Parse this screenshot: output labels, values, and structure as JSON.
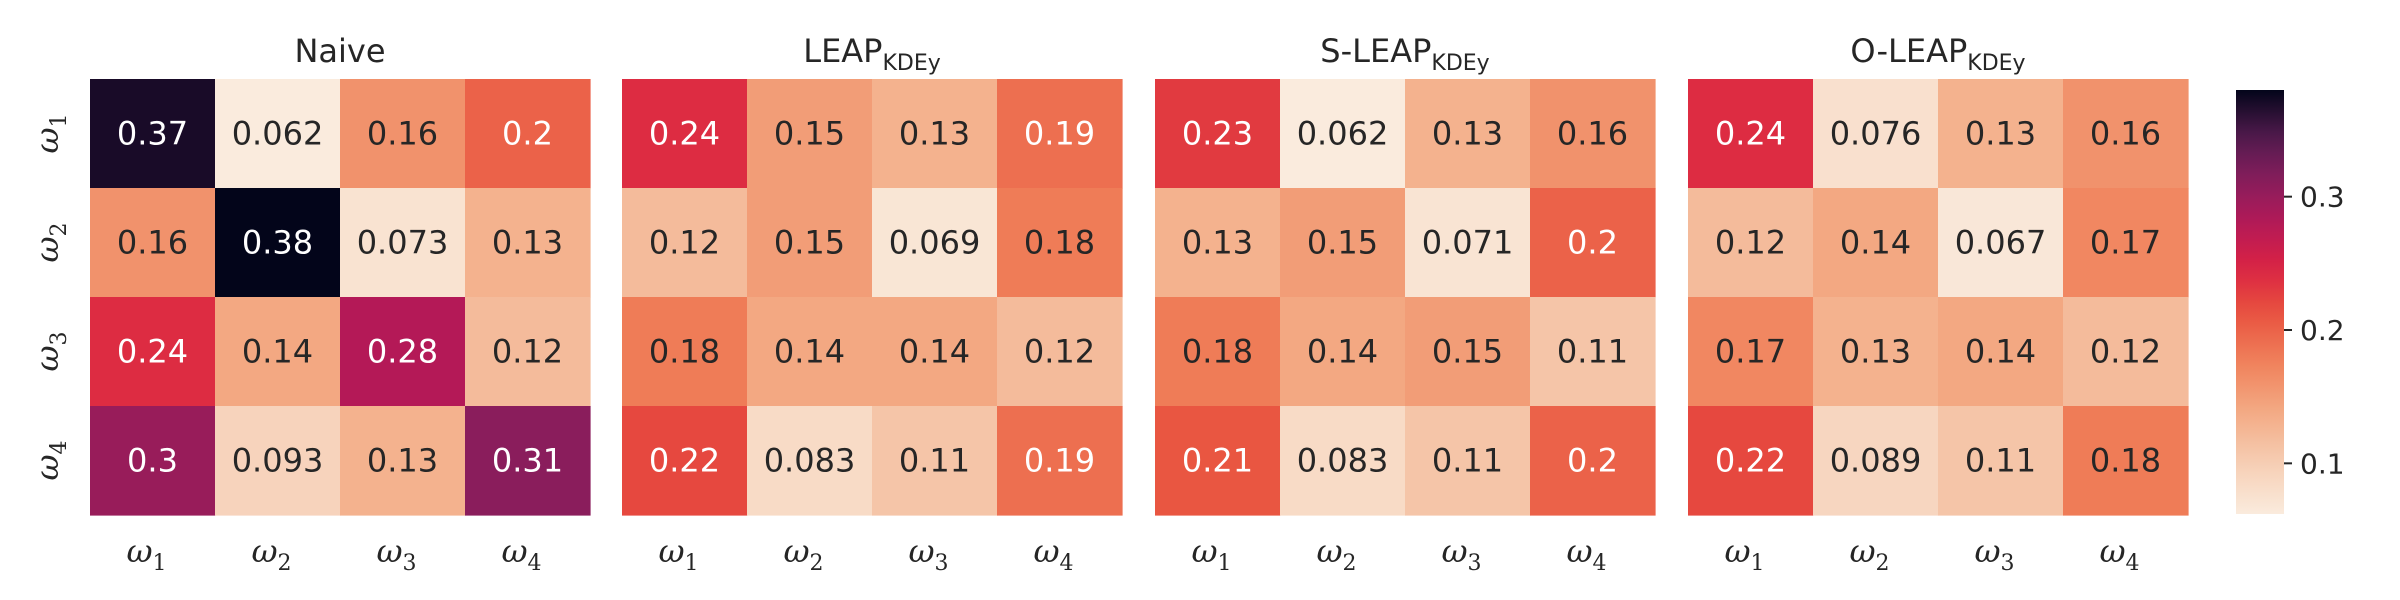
{
  "chart_data": {
    "type": "heatmap",
    "colormap": "rocket_r",
    "color_range": [
      0.062,
      0.38
    ],
    "colorbar": {
      "ticks": [
        0.1,
        0.2,
        0.3
      ],
      "labels": [
        "0.1",
        "0.2",
        "0.3"
      ],
      "placement": "right"
    },
    "row_labels": [
      {
        "base": "ω",
        "sub": "1"
      },
      {
        "base": "ω",
        "sub": "2"
      },
      {
        "base": "ω",
        "sub": "3"
      },
      {
        "base": "ω",
        "sub": "4"
      }
    ],
    "col_labels": [
      {
        "base": "ω",
        "sub": "1"
      },
      {
        "base": "ω",
        "sub": "2"
      },
      {
        "base": "ω",
        "sub": "3"
      },
      {
        "base": "ω",
        "sub": "4"
      }
    ],
    "panels": [
      {
        "title": "Naive",
        "title_sub": "",
        "values": [
          [
            0.37,
            0.062,
            0.16,
            0.2
          ],
          [
            0.16,
            0.38,
            0.073,
            0.13
          ],
          [
            0.24,
            0.14,
            0.28,
            0.12
          ],
          [
            0.3,
            0.093,
            0.13,
            0.31
          ]
        ],
        "labels": [
          [
            "0.37",
            "0.062",
            "0.16",
            "0.2"
          ],
          [
            "0.16",
            "0.38",
            "0.073",
            "0.13"
          ],
          [
            "0.24",
            "0.14",
            "0.28",
            "0.12"
          ],
          [
            "0.3",
            "0.093",
            "0.13",
            "0.31"
          ]
        ]
      },
      {
        "title": "LEAP",
        "title_sub": "KDEy",
        "values": [
          [
            0.24,
            0.15,
            0.13,
            0.19
          ],
          [
            0.12,
            0.15,
            0.069,
            0.18
          ],
          [
            0.18,
            0.14,
            0.14,
            0.12
          ],
          [
            0.22,
            0.083,
            0.11,
            0.19
          ]
        ],
        "labels": [
          [
            "0.24",
            "0.15",
            "0.13",
            "0.19"
          ],
          [
            "0.12",
            "0.15",
            "0.069",
            "0.18"
          ],
          [
            "0.18",
            "0.14",
            "0.14",
            "0.12"
          ],
          [
            "0.22",
            "0.083",
            "0.11",
            "0.19"
          ]
        ]
      },
      {
        "title": "S-LEAP",
        "title_sub": "KDEy",
        "values": [
          [
            0.23,
            0.062,
            0.13,
            0.16
          ],
          [
            0.13,
            0.15,
            0.071,
            0.2
          ],
          [
            0.18,
            0.14,
            0.15,
            0.11
          ],
          [
            0.21,
            0.083,
            0.11,
            0.2
          ]
        ],
        "labels": [
          [
            "0.23",
            "0.062",
            "0.13",
            "0.16"
          ],
          [
            "0.13",
            "0.15",
            "0.071",
            "0.2"
          ],
          [
            "0.18",
            "0.14",
            "0.15",
            "0.11"
          ],
          [
            "0.21",
            "0.083",
            "0.11",
            "0.2"
          ]
        ]
      },
      {
        "title": "O-LEAP",
        "title_sub": "KDEy",
        "values": [
          [
            0.24,
            0.076,
            0.13,
            0.16
          ],
          [
            0.12,
            0.14,
            0.067,
            0.17
          ],
          [
            0.17,
            0.13,
            0.14,
            0.12
          ],
          [
            0.22,
            0.089,
            0.11,
            0.18
          ]
        ],
        "labels": [
          [
            "0.24",
            "0.076",
            "0.13",
            "0.16"
          ],
          [
            "0.12",
            "0.14",
            "0.067",
            "0.17"
          ],
          [
            "0.17",
            "0.13",
            "0.14",
            "0.12"
          ],
          [
            "0.22",
            "0.089",
            "0.11",
            "0.18"
          ]
        ]
      }
    ]
  }
}
